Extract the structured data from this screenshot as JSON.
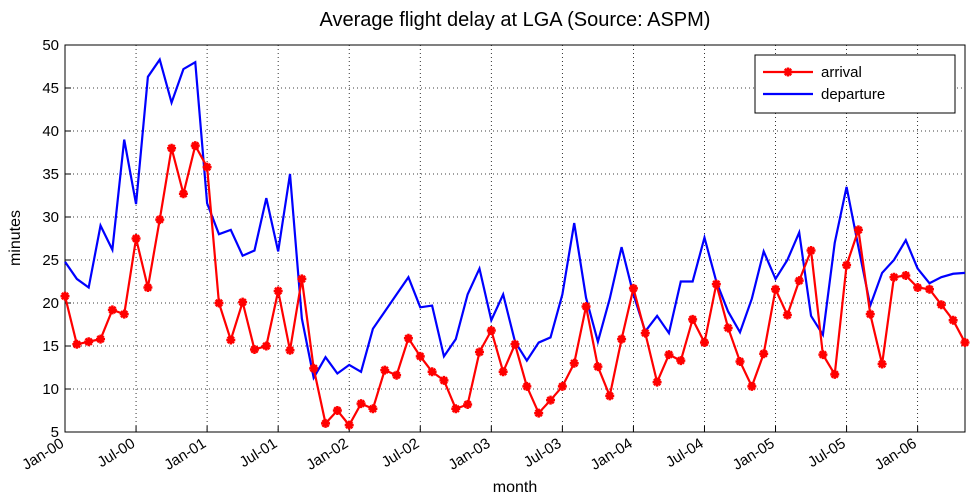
{
  "chart_data": {
    "type": "line",
    "title": "Average flight delay at LGA (Source: ASPM)",
    "x_label": "month",
    "y_label": "minutes",
    "categories": [
      "Jan-00",
      null,
      null,
      null,
      null,
      null,
      "Jul-00",
      null,
      null,
      null,
      null,
      null,
      "Jan-01",
      null,
      null,
      null,
      null,
      null,
      "Jul-01",
      null,
      null,
      null,
      null,
      null,
      "Jan-02",
      null,
      null,
      null,
      null,
      null,
      "Jul-02",
      null,
      null,
      null,
      null,
      null,
      "Jan-03",
      null,
      null,
      null,
      null,
      null,
      "Jul-03",
      null,
      null,
      null,
      null,
      null,
      "Jan-04",
      null,
      null,
      null,
      null,
      null,
      "Jul-04",
      null,
      null,
      null,
      null,
      null,
      "Jan-05",
      null,
      null,
      null,
      null,
      null,
      "Jul-05",
      null,
      null,
      null,
      null,
      null,
      "Jan-06",
      null,
      null,
      null,
      null
    ],
    "series": [
      {
        "name": "arrival",
        "color": "#ff0000",
        "marker": "star",
        "values": [
          20.8,
          15.2,
          15.5,
          15.8,
          19.2,
          18.7,
          27.5,
          21.8,
          29.7,
          38,
          32.7,
          38.3,
          35.8,
          20,
          15.7,
          20.1,
          14.6,
          15,
          21.4,
          14.5,
          22.8,
          12.4,
          6,
          7.5,
          5.8,
          8.3,
          7.7,
          12.2,
          11.6,
          15.9,
          13.8,
          12,
          11,
          7.7,
          8.2,
          14.3,
          16.8,
          12,
          15.2,
          10.3,
          7.2,
          8.7,
          10.3,
          13,
          19.6,
          12.6,
          9.2,
          15.8,
          21.7,
          16.5,
          10.8,
          14,
          13.3,
          18.1,
          15.4,
          22.2,
          17.1,
          13.2,
          10.3,
          14.1,
          21.6,
          18.6,
          22.6,
          26.1,
          14,
          11.7,
          24.4,
          28.5,
          18.7,
          12.9,
          23,
          23.2,
          21.8,
          21.6,
          19.8,
          18,
          15.4
        ]
      },
      {
        "name": "departure",
        "color": "#0000ff",
        "values": [
          24.8,
          22.8,
          21.8,
          29,
          26.2,
          39,
          31.5,
          46.3,
          48.3,
          43.3,
          47.2,
          48,
          31.6,
          28,
          28.5,
          25.5,
          26.1,
          32.2,
          26,
          35,
          18.2,
          11.3,
          13.7,
          11.8,
          12.8,
          12,
          17,
          19,
          21,
          23,
          19.5,
          19.7,
          13.8,
          15.8,
          21,
          24,
          18,
          21,
          15.5,
          13.3,
          15.4,
          16,
          21,
          29.3,
          20.6,
          15.5,
          20.5,
          26.5,
          21,
          16.7,
          18.5,
          16.5,
          22.5,
          22.5,
          27.6,
          22.5,
          19,
          16.6,
          20.5,
          26,
          22.8,
          25,
          28.2,
          18.5,
          16.3,
          27,
          33.5,
          26.5,
          19.7,
          23.5,
          25,
          27.3,
          24,
          22.3,
          23,
          23.4,
          23.5
        ]
      }
    ],
    "ylim": [
      5,
      50
    ],
    "yticks": [
      5,
      10,
      15,
      20,
      25,
      30,
      35,
      40,
      45,
      50
    ],
    "grid": true,
    "legend": "upper right"
  }
}
